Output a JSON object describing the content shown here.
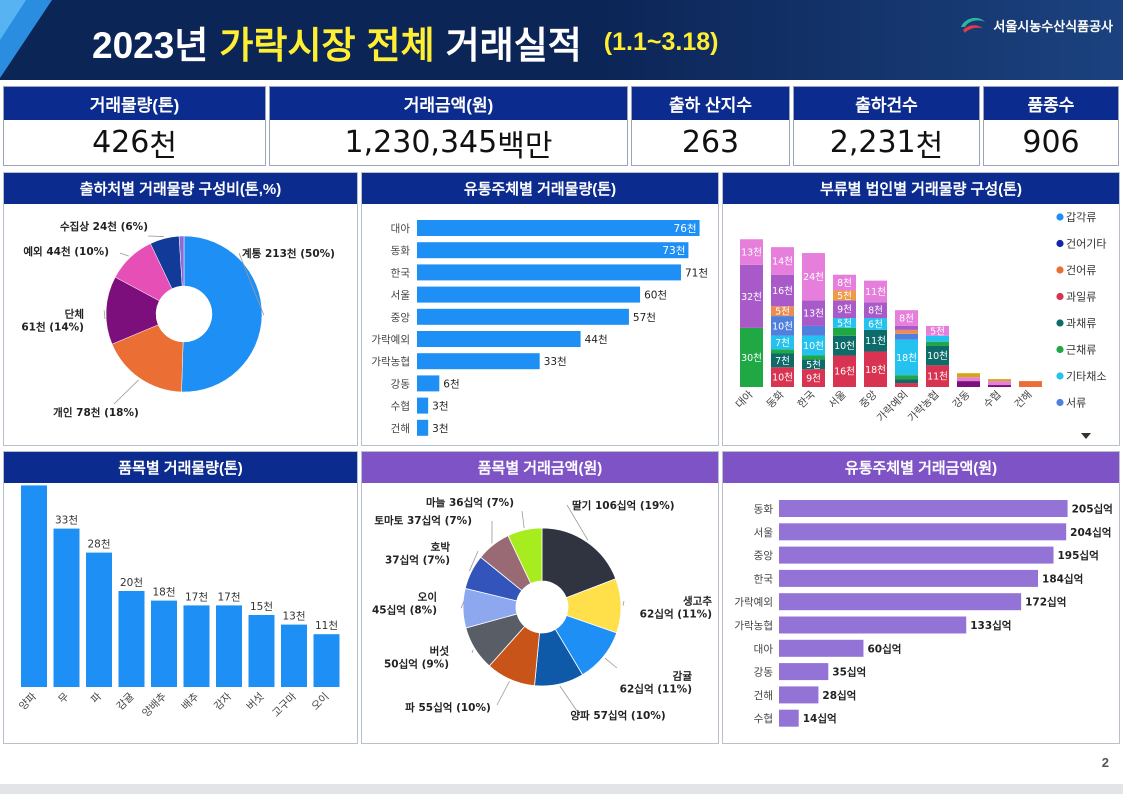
{
  "header": {
    "title_year": "2023년",
    "title_highlight_1": "가락시장",
    "title_highlight_2": "전체",
    "title_rest": "거래실적",
    "period": "(1.1~3.18)",
    "org": "서울시농수산식품공사"
  },
  "kpis": [
    {
      "label": "거래물량(톤)",
      "value": "426",
      "unit": "천"
    },
    {
      "label": "거래금액(원)",
      "value": "1,230,345",
      "unit": "백만"
    },
    {
      "label": "출하 산지수",
      "value": "263",
      "unit": ""
    },
    {
      "label": "출하건수",
      "value": "2,231",
      "unit": "천"
    },
    {
      "label": "품종수",
      "value": "906",
      "unit": ""
    }
  ],
  "panels": {
    "p1": "출하처별 거래물량 구성비(톤,%)",
    "p2": "유통주체별 거래물량(톤)",
    "p3": "부류별 법인별 거래물량 구성(톤)",
    "p4": "품목별 거래물량(톤)",
    "p5": "품목별 거래금액(원)",
    "p6": "유통주체별 거래금액(원)"
  },
  "page_number": "2",
  "colors": {
    "navy": "#0c2b8e",
    "purple": "#7d53c5",
    "bar_blue": "#1e8ff5",
    "bar_purple": "#9473d6"
  },
  "chart_data": [
    {
      "id": "shipper_share",
      "type": "pie",
      "donut": true,
      "slices": [
        {
          "label": "계통 213천 (50%)",
          "value": 50,
          "color": "#1e8ff5"
        },
        {
          "label": "개인 78천 (18%)",
          "value": 18,
          "color": "#eb6f35"
        },
        {
          "label": "단체\n61천 (14%)",
          "value": 14,
          "color": "#7c0f7c"
        },
        {
          "label": "예외 44천 (10%)",
          "value": 10,
          "color": "#e64fb6"
        },
        {
          "label": "수집상 24천 (6%)",
          "value": 6,
          "color": "#123a99"
        },
        {
          "label": "",
          "value": 1,
          "color": "#8d6ad6"
        }
      ]
    },
    {
      "id": "entity_volume",
      "type": "bar",
      "orientation": "horizontal",
      "categories": [
        "대아",
        "동화",
        "한국",
        "서울",
        "중앙",
        "가락예외",
        "가락농협",
        "강동",
        "수협",
        "건해"
      ],
      "values": [
        76,
        73,
        71,
        60,
        57,
        44,
        33,
        6,
        3,
        3
      ],
      "value_labels": [
        "76천",
        "73천",
        "71천",
        "60천",
        "57천",
        "44천",
        "33천",
        "6천",
        "3천",
        "3천"
      ],
      "xlim": [
        0,
        78
      ]
    },
    {
      "id": "category_corp",
      "type": "bar",
      "stacked": true,
      "categories": [
        "대아",
        "동화",
        "한국",
        "서울",
        "중앙",
        "가락예외",
        "가락농협",
        "강동",
        "수협",
        "건해"
      ],
      "ylim": [
        0,
        80
      ],
      "legend": [
        "갑각류",
        "건어기타",
        "건어류",
        "과일류",
        "과채류",
        "근채류",
        "기타채소",
        "서류"
      ],
      "legend_colors": [
        "#1e8ff5",
        "#1226a6",
        "#eb6f35",
        "#d83350",
        "#0d6b6a",
        "#20a845",
        "#24c2ee",
        "#4e80de"
      ],
      "series": [
        {
          "values": [
            0,
            0,
            0,
            0,
            0,
            0,
            0,
            0,
            0,
            3
          ],
          "color": "#eb6f35",
          "labels": [
            "",
            "",
            "",
            "",
            "",
            "",
            "",
            "",
            "",
            ""
          ]
        },
        {
          "values": [
            0,
            10,
            9,
            16,
            18,
            2,
            11,
            0,
            0,
            0
          ],
          "color": "#d83350",
          "labels": [
            "",
            "10천",
            "9천",
            "16천",
            "18천",
            "",
            "11천",
            "",
            "",
            ""
          ]
        },
        {
          "values": [
            0,
            7,
            5,
            10,
            11,
            2,
            10,
            0,
            0,
            0
          ],
          "color": "#0d6b6a",
          "labels": [
            "",
            "7천",
            "5천",
            "10천",
            "11천",
            "",
            "10천",
            "",
            "",
            ""
          ]
        },
        {
          "values": [
            30,
            2,
            2,
            4,
            0,
            2,
            2,
            0,
            0,
            0
          ],
          "color": "#20a845",
          "labels": [
            "30천",
            "",
            "",
            "",
            "",
            "",
            "",
            "",
            "",
            ""
          ]
        },
        {
          "values": [
            0,
            7,
            10,
            5,
            6,
            18,
            3,
            0,
            0,
            0
          ],
          "color": "#24c2ee",
          "labels": [
            "",
            "7천",
            "10천",
            "5천",
            "6천",
            "18천",
            "",
            "",
            "",
            ""
          ]
        },
        {
          "values": [
            0,
            10,
            5,
            0,
            0,
            3,
            0,
            0,
            0,
            0
          ],
          "color": "#4e80de",
          "labels": [
            "",
            "10천",
            "",
            "",
            "",
            "",
            "",
            "",
            "",
            ""
          ]
        },
        {
          "values": [
            0,
            5,
            0,
            0,
            0,
            2,
            0,
            0,
            0,
            0
          ],
          "color": "#ec8c55",
          "labels": [
            "",
            "5천",
            "",
            "",
            "",
            "",
            "",
            "",
            "",
            ""
          ]
        },
        {
          "values": [
            0,
            0,
            0,
            0,
            0,
            0,
            0,
            3,
            1,
            0
          ],
          "color": "#7c0f7c",
          "labels": [
            "",
            "",
            "",
            "",
            "",
            "",
            "",
            "",
            "",
            ""
          ]
        },
        {
          "values": [
            32,
            16,
            13,
            9,
            8,
            2,
            0,
            0,
            0,
            0
          ],
          "color": "#a85bc8",
          "labels": [
            "32천",
            "16천",
            "13천",
            "9천",
            "8천",
            "",
            "",
            "",
            "",
            ""
          ]
        },
        {
          "values": [
            0,
            0,
            0,
            5,
            0,
            0,
            0,
            0,
            0,
            0
          ],
          "color": "#ef9a45",
          "labels": [
            "",
            "",
            "",
            "5천",
            "",
            "",
            "",
            "",
            "",
            ""
          ]
        },
        {
          "values": [
            13,
            14,
            24,
            8,
            11,
            8,
            5,
            2,
            2,
            0
          ],
          "color": "#e67fdc",
          "labels": [
            "13천",
            "14천",
            "24천",
            "8천",
            "11천",
            "8천",
            "5천",
            "",
            "",
            ""
          ]
        },
        {
          "values": [
            0,
            0,
            0,
            0,
            0,
            0,
            0,
            2,
            1,
            0
          ],
          "color": "#d6a512",
          "labels": [
            "",
            "",
            "",
            "",
            "",
            "",
            "",
            "",
            "",
            ""
          ]
        }
      ]
    },
    {
      "id": "item_volume",
      "type": "bar",
      "categories": [
        "양파",
        "무",
        "파",
        "감귤",
        "양배추",
        "배추",
        "감자",
        "버섯",
        "고구마",
        "오이"
      ],
      "values": [
        42,
        33,
        28,
        20,
        18,
        17,
        17,
        15,
        13,
        11
      ],
      "value_labels": [
        "42천",
        "33천",
        "28천",
        "20천",
        "18천",
        "17천",
        "17천",
        "15천",
        "13천",
        "11천"
      ],
      "ylim": [
        0,
        44
      ]
    },
    {
      "id": "item_amount",
      "type": "pie",
      "donut": true,
      "slices": [
        {
          "label": "딸기 106십억 (19%)",
          "value": 19,
          "color": "#2f3440"
        },
        {
          "label": "생고추\n62십억 (11%)",
          "value": 11,
          "color": "#ffe04a"
        },
        {
          "label": "감귤\n62십억 (11%)",
          "value": 11,
          "color": "#1e8ff5"
        },
        {
          "label": "양파 57십억 (10%)",
          "value": 10,
          "color": "#0e5aa8"
        },
        {
          "label": "파 55십억 (10%)",
          "value": 10,
          "color": "#c8541a"
        },
        {
          "label": "버섯\n50십억 (9%)",
          "value": 9,
          "color": "#595e66"
        },
        {
          "label": "오이\n45십억 (8%)",
          "value": 8,
          "color": "#8da8ee"
        },
        {
          "label": "호박\n37십억 (7%)",
          "value": 7,
          "color": "#3355bb"
        },
        {
          "label": "토마토 37십억 (7%)",
          "value": 7,
          "color": "#9a6a74"
        },
        {
          "label": "마늘 36십억 (7%)",
          "value": 7,
          "color": "#a6ec1f"
        }
      ]
    },
    {
      "id": "entity_amount",
      "type": "bar",
      "orientation": "horizontal",
      "categories": [
        "동화",
        "서울",
        "중앙",
        "한국",
        "가락예외",
        "가락농협",
        "대아",
        "강동",
        "건해",
        "수협"
      ],
      "values": [
        205,
        204,
        195,
        184,
        172,
        133,
        60,
        35,
        28,
        14
      ],
      "value_labels": [
        "205십억",
        "204십억",
        "195십억",
        "184십억",
        "172십억",
        "133십억",
        "60십억",
        "35십억",
        "28십억",
        "14십억"
      ],
      "xlim": [
        0,
        206
      ]
    }
  ]
}
